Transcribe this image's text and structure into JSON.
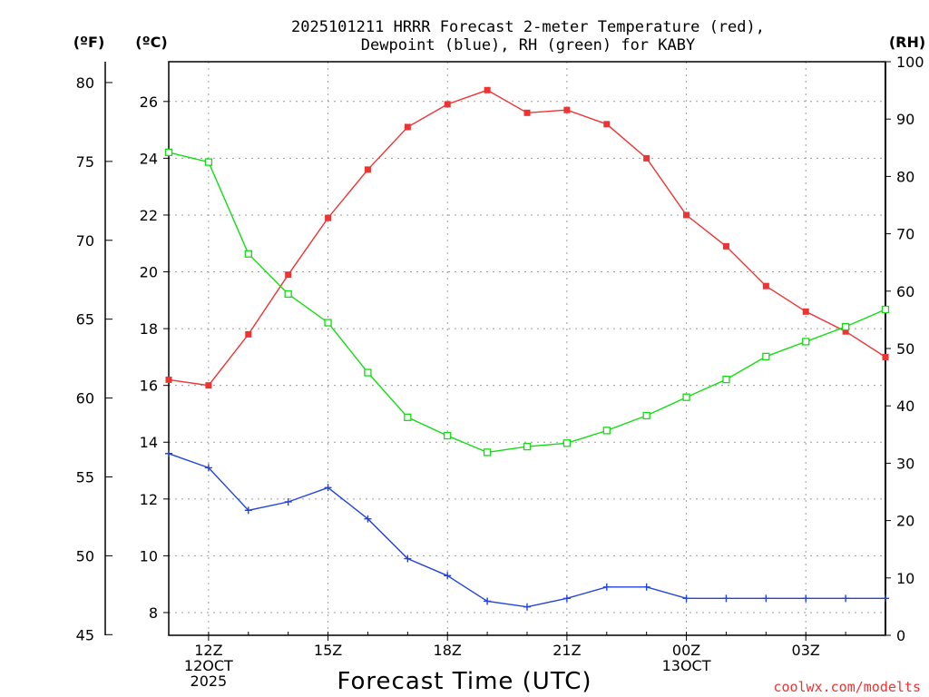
{
  "chart_data": {
    "type": "line",
    "title_line1": "2025101211 HRRR Forecast 2-meter Temperature (red),",
    "title_line2": "Dewpoint (blue), RH (green) for KABY",
    "xlabel": "Forecast Time (UTC)",
    "unit_labels": {
      "fahrenheit": "(ºF)",
      "celsius": "(ºC)",
      "rh": "(RH)"
    },
    "credit": "coolwx.com/modelts",
    "x_hours": [
      11,
      12,
      13,
      14,
      15,
      16,
      17,
      18,
      19,
      20,
      21,
      22,
      23,
      24,
      25,
      26,
      27,
      28,
      29
    ],
    "xlim": [
      11,
      29
    ],
    "x_ticks": [
      {
        "hour": 12,
        "lines": [
          "12Z",
          "12OCT",
          "2025"
        ]
      },
      {
        "hour": 15,
        "lines": [
          "15Z"
        ]
      },
      {
        "hour": 18,
        "lines": [
          "18Z"
        ]
      },
      {
        "hour": 21,
        "lines": [
          "21Z"
        ]
      },
      {
        "hour": 24,
        "lines": [
          "00Z",
          "13OCT"
        ]
      },
      {
        "hour": 27,
        "lines": [
          "03Z"
        ]
      }
    ],
    "celsius_axis": {
      "ylim": [
        7.2,
        27.4
      ],
      "ticks": [
        8,
        10,
        12,
        14,
        16,
        18,
        20,
        22,
        24,
        26
      ]
    },
    "fahrenheit_axis": {
      "ticks": [
        45,
        50,
        55,
        60,
        65,
        70,
        75,
        80
      ]
    },
    "rh_axis": {
      "ylim": [
        0,
        100
      ],
      "ticks": [
        0,
        10,
        20,
        30,
        40,
        50,
        60,
        70,
        80,
        90,
        100
      ]
    },
    "series": [
      {
        "name": "Temperature",
        "units": "C",
        "axis": "celsius",
        "color": "#ee3333",
        "marker": "filled-square",
        "values": [
          16.2,
          16.0,
          17.8,
          19.9,
          21.9,
          23.6,
          25.1,
          25.9,
          26.4,
          25.6,
          25.7,
          25.2,
          24.0,
          22.0,
          20.9,
          19.5,
          18.6,
          17.9,
          17.0
        ]
      },
      {
        "name": "Dewpoint",
        "units": "C",
        "axis": "celsius",
        "color": "#2244dd",
        "marker": "plus",
        "values": [
          13.6,
          13.1,
          11.6,
          11.9,
          12.4,
          11.3,
          9.9,
          9.3,
          8.4,
          8.2,
          8.5,
          8.9,
          8.9,
          8.5,
          8.5,
          8.5,
          8.5,
          8.5,
          8.5
        ]
      },
      {
        "name": "RH",
        "units": "%",
        "axis": "rh",
        "color": "#11dd11",
        "marker": "open-square",
        "values": [
          84.2,
          82.5,
          66.5,
          59.5,
          54.5,
          45.8,
          38.0,
          34.8,
          31.9,
          32.9,
          33.5,
          35.7,
          38.3,
          41.5,
          44.6,
          48.6,
          51.2,
          53.8,
          56.8
        ]
      }
    ]
  }
}
